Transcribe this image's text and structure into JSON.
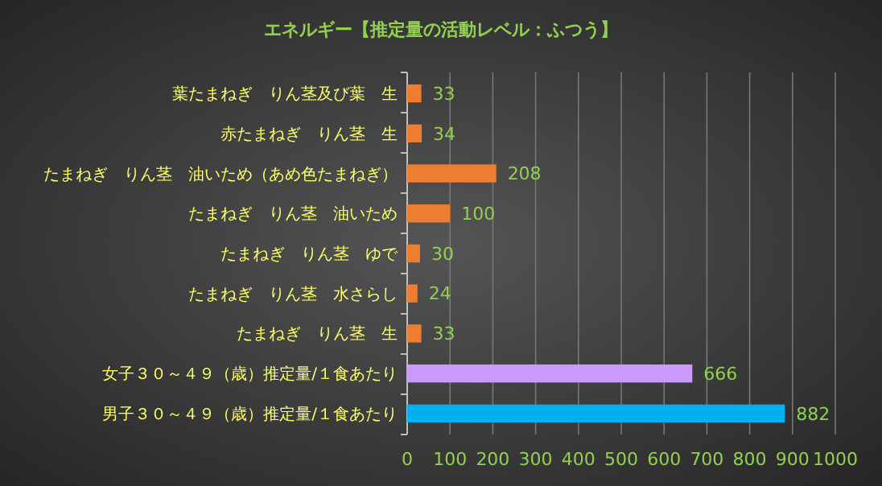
{
  "chart_data": {
    "type": "bar",
    "orientation": "horizontal",
    "title": "エネルギー【推定量の活動レベル：ふつう】",
    "categories": [
      "葉たまねぎ　りん茎及び葉　生",
      "赤たまねぎ　りん茎　生",
      "たまねぎ　りん茎　油いため（あめ色たまねぎ）",
      "たまねぎ　りん茎　油いため",
      "たまねぎ　りん茎　ゆで",
      "たまねぎ　りん茎　水さらし",
      "たまねぎ　りん茎　生",
      "女子３０～４９（歳）推定量/１食あたり",
      "男子３０～４９（歳）推定量/１食あたり"
    ],
    "values": [
      33,
      34,
      208,
      100,
      30,
      24,
      33,
      666,
      882
    ],
    "colors": [
      "#ed7d31",
      "#ed7d31",
      "#ed7d31",
      "#ed7d31",
      "#ed7d31",
      "#ed7d31",
      "#ed7d31",
      "#cc99ff",
      "#00b0f0"
    ],
    "data_labels": true,
    "xlim": [
      0,
      1000
    ],
    "xticks": [
      0,
      100,
      200,
      300,
      400,
      500,
      600,
      700,
      800,
      900,
      1000
    ],
    "grid": "x"
  }
}
